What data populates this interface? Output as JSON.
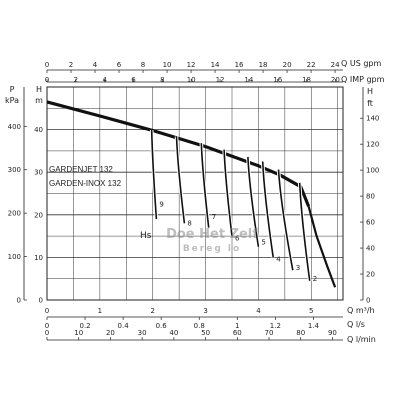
{
  "chart_data": {
    "type": "line",
    "title": "",
    "models": [
      "GARDENJET 132",
      "GARDEN-INOX 132"
    ],
    "annotation": "Hs",
    "watermark": [
      "Doe Het Zelf",
      "Bereg lo"
    ],
    "axes": {
      "top_us_gpm": {
        "unit": "Q US gpm",
        "ticks": [
          0,
          2,
          4,
          6,
          8,
          10,
          12,
          14,
          16,
          18,
          20,
          22,
          24
        ]
      },
      "top_imp_gpm": {
        "unit": "Q IMP gpm",
        "ticks": [
          0,
          2,
          4,
          6,
          8,
          10,
          12,
          14,
          16,
          18,
          20
        ]
      },
      "left_p": {
        "label": "P",
        "unit": "kPa",
        "ticks": [
          0,
          100,
          200,
          300,
          400
        ]
      },
      "left_h": {
        "label": "H",
        "unit": "m",
        "ticks": [
          0,
          10,
          20,
          30,
          40
        ]
      },
      "right_h": {
        "label": "H",
        "unit": "ft",
        "ticks": [
          0,
          20,
          40,
          60,
          80,
          100,
          120,
          140
        ]
      },
      "bottom_m3h": {
        "unit": "Q m³/h",
        "ticks": [
          0,
          1,
          2,
          3,
          4,
          5
        ]
      },
      "bottom_ls": {
        "unit": "Q l/s",
        "ticks": [
          0,
          0.2,
          0.4,
          0.6,
          0.8,
          1,
          1.2,
          1.4
        ]
      },
      "bottom_lmin": {
        "unit": "Q l/min",
        "ticks": [
          0,
          10,
          20,
          30,
          40,
          50,
          60,
          70,
          80,
          90
        ]
      }
    },
    "xlim_m3h": [
      0,
      5.6
    ],
    "ylim_m": [
      0,
      50
    ],
    "main_curve": {
      "name": "H",
      "x_m3h": [
        0,
        1.0,
        2.0,
        3.0,
        4.0,
        4.4,
        4.8,
        4.95
      ],
      "y_m": [
        46.5,
        43.2,
        39.8,
        36.0,
        31.5,
        29.4,
        26.6,
        22.0
      ]
    },
    "tail_curve": {
      "x_m3h": [
        4.95,
        5.1,
        5.3,
        5.45
      ],
      "y_m": [
        22.0,
        15.0,
        8.0,
        3.0
      ]
    },
    "suction_curves": [
      {
        "name": "9",
        "start_m3h": 1.98,
        "start_m": 39.9,
        "end_m3h": 2.07,
        "end_m": 19.0,
        "label_m": 22.0
      },
      {
        "name": "8",
        "start_m3h": 2.45,
        "start_m": 38.4,
        "end_m3h": 2.6,
        "end_m": 18.0,
        "label_m": 17.5
      },
      {
        "name": "7",
        "start_m3h": 2.92,
        "start_m": 36.8,
        "end_m3h": 3.06,
        "end_m": 17.0,
        "label_m": 19.0
      },
      {
        "name": "6",
        "start_m3h": 3.35,
        "start_m": 35.3,
        "end_m3h": 3.5,
        "end_m": 15.0,
        "label_m": 14.0
      },
      {
        "name": "5",
        "start_m3h": 3.8,
        "start_m": 33.6,
        "end_m3h": 4.0,
        "end_m": 12.5,
        "label_m": 13.0
      },
      {
        "name": "4",
        "start_m3h": 4.08,
        "start_m": 32.5,
        "end_m3h": 4.28,
        "end_m": 10.0,
        "label_m": 9.0
      },
      {
        "name": "3",
        "start_m3h": 4.38,
        "start_m": 30.6,
        "end_m3h": 4.65,
        "end_m": 7.0,
        "label_m": 7.0
      },
      {
        "name": "2",
        "start_m3h": 4.78,
        "start_m": 27.5,
        "end_m3h": 4.97,
        "end_m": 4.5,
        "label_m": 4.5
      }
    ],
    "grid": true
  }
}
